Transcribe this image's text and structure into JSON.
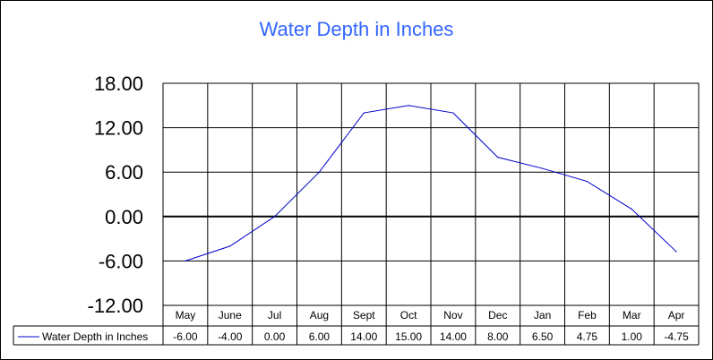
{
  "chart_data": {
    "type": "line",
    "title": "Water Depth in Inches",
    "xlabel": "",
    "ylabel": "",
    "categories": [
      "May",
      "June",
      "Jul",
      "Aug",
      "Sept",
      "Oct",
      "Nov",
      "Dec",
      "Jan",
      "Feb",
      "Mar",
      "Apr"
    ],
    "series": [
      {
        "name": "Water Depth in Inches",
        "values": [
          -6.0,
          -4.0,
          0.0,
          6.0,
          14.0,
          15.0,
          14.0,
          8.0,
          6.5,
          4.75,
          1.0,
          -4.75
        ],
        "labels": [
          "-6.00",
          "-4.00",
          "0.00",
          "6.00",
          "14.00",
          "15.00",
          "14.00",
          "8.00",
          "6.50",
          "4.75",
          "1.00",
          "-4.75"
        ]
      }
    ],
    "ylim": [
      -12,
      18
    ],
    "yticks": [
      18,
      12,
      6,
      0,
      -6,
      -12
    ],
    "ytick_labels": [
      "18.00",
      "12.00",
      "6.00",
      "0.00",
      "-6.00",
      "-12.00"
    ],
    "grid": true,
    "data_table": true,
    "colors": {
      "title": "#3366ff",
      "line": "#0000cc",
      "grid": "#000000"
    }
  }
}
